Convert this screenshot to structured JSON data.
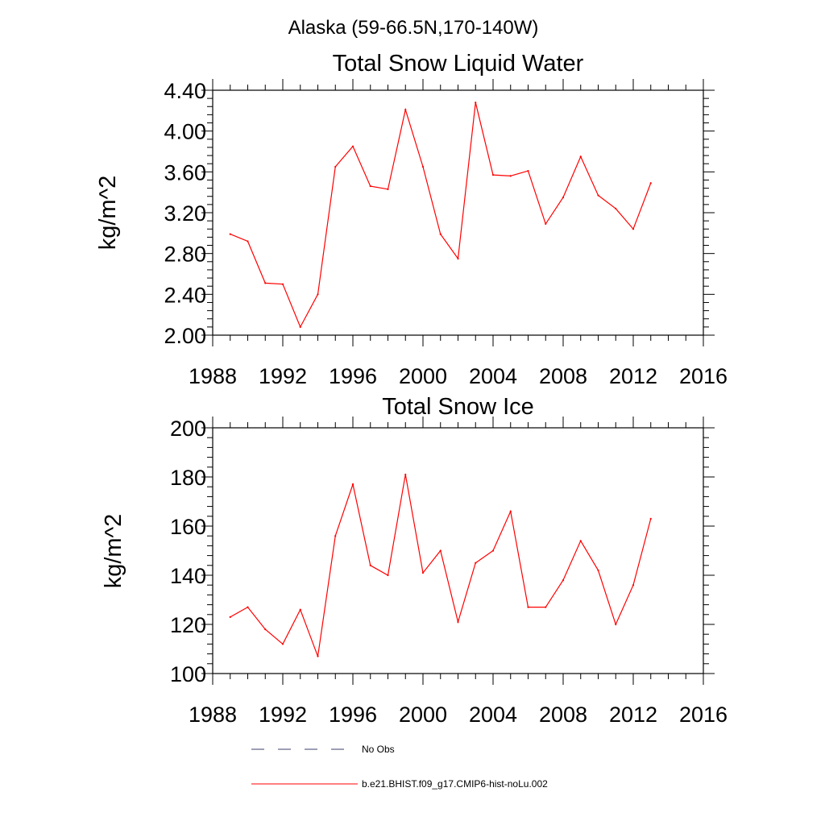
{
  "suptitle": "Alaska (59-66.5N,170-140W)",
  "chart_data": [
    {
      "type": "line",
      "title": "Total Snow Liquid Water",
      "xlabel": "",
      "ylabel": "kg/m^2",
      "xlim": [
        1988,
        2016
      ],
      "ylim": [
        2.0,
        4.4
      ],
      "xticks": [
        "1988",
        "1992",
        "1996",
        "2000",
        "2004",
        "2008",
        "2012",
        "2016"
      ],
      "yticks": [
        "2.00",
        "2.40",
        "2.80",
        "3.20",
        "3.60",
        "4.00",
        "4.40"
      ],
      "series": [
        {
          "name": "b.e21.BHIST.f09_g17.CMIP6-hist-noLu.002",
          "color": "#ff0000",
          "x": [
            1989,
            1990,
            1991,
            1992,
            1993,
            1994,
            1995,
            1996,
            1997,
            1998,
            1999,
            2000,
            2001,
            2002,
            2003,
            2004,
            2005,
            2006,
            2007,
            2008,
            2009,
            2010,
            2011,
            2012,
            2013
          ],
          "y": [
            2.99,
            2.92,
            2.51,
            2.5,
            2.08,
            2.4,
            3.65,
            3.85,
            3.46,
            3.43,
            4.21,
            3.65,
            2.99,
            2.75,
            4.28,
            3.57,
            3.56,
            3.61,
            3.09,
            3.35,
            3.75,
            3.37,
            3.24,
            3.04,
            3.49
          ]
        }
      ]
    },
    {
      "type": "line",
      "title": "Total Snow Ice",
      "xlabel": "",
      "ylabel": "kg/m^2",
      "xlim": [
        1988,
        2016
      ],
      "ylim": [
        100,
        200
      ],
      "xticks": [
        "1988",
        "1992",
        "1996",
        "2000",
        "2004",
        "2008",
        "2012",
        "2016"
      ],
      "yticks": [
        "100",
        "120",
        "140",
        "160",
        "180",
        "200"
      ],
      "series": [
        {
          "name": "b.e21.BHIST.f09_g17.CMIP6-hist-noLu.002",
          "color": "#ff0000",
          "x": [
            1989,
            1990,
            1991,
            1992,
            1993,
            1994,
            1995,
            1996,
            1997,
            1998,
            1999,
            2000,
            2001,
            2002,
            2003,
            2004,
            2005,
            2006,
            2007,
            2008,
            2009,
            2010,
            2011,
            2012,
            2013
          ],
          "y": [
            123,
            127,
            118,
            112,
            126,
            107,
            156,
            177,
            144,
            140,
            181,
            141,
            150,
            121,
            145,
            150,
            166,
            127,
            127,
            138,
            154,
            142,
            120,
            136,
            163
          ]
        }
      ]
    }
  ],
  "legend": [
    {
      "label": "No Obs",
      "style": "dashed",
      "color": "#3b3f6b"
    },
    {
      "label": "b.e21.BHIST.f09_g17.CMIP6-hist-noLu.002",
      "style": "solid",
      "color": "#ff0000"
    }
  ]
}
